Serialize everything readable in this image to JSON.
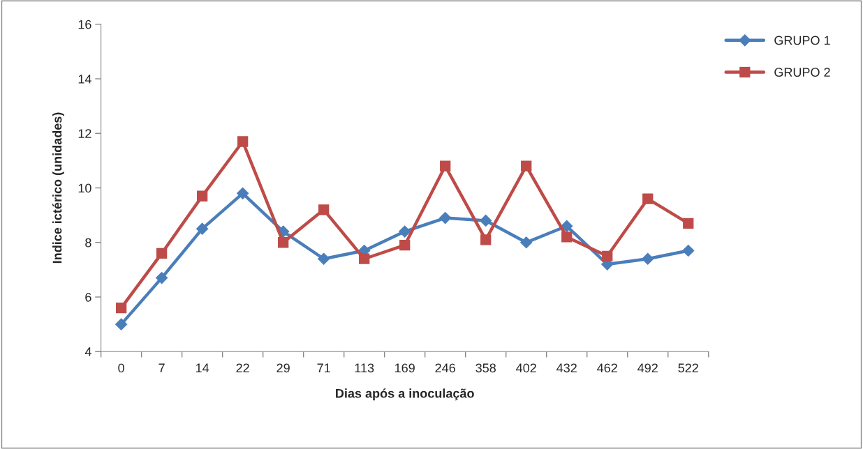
{
  "chart_data": {
    "type": "line",
    "xlabel": "Dias após a inoculação",
    "ylabel": "Indice ictérico (unidades)",
    "categories": [
      "0",
      "7",
      "14",
      "22",
      "29",
      "71",
      "113",
      "169",
      "246",
      "358",
      "402",
      "432",
      "462",
      "492",
      "522"
    ],
    "series": [
      {
        "name": "GRUPO 1",
        "color": "#4a7ebb",
        "marker": "diamond",
        "values": [
          5.0,
          6.7,
          8.5,
          9.8,
          8.4,
          7.4,
          7.7,
          8.4,
          8.9,
          8.8,
          8.0,
          8.6,
          7.2,
          7.4,
          7.7
        ]
      },
      {
        "name": "GRUPO 2",
        "color": "#be4b48",
        "marker": "square",
        "values": [
          5.6,
          7.6,
          9.7,
          11.7,
          8.0,
          9.2,
          7.4,
          7.9,
          10.8,
          8.1,
          10.8,
          8.2,
          7.5,
          9.6,
          8.7
        ]
      }
    ],
    "ylim": [
      4,
      16
    ],
    "yticks": [
      4,
      6,
      8,
      10,
      12,
      14,
      16
    ],
    "grid": false,
    "legend": "top right",
    "line_style": "solid"
  }
}
